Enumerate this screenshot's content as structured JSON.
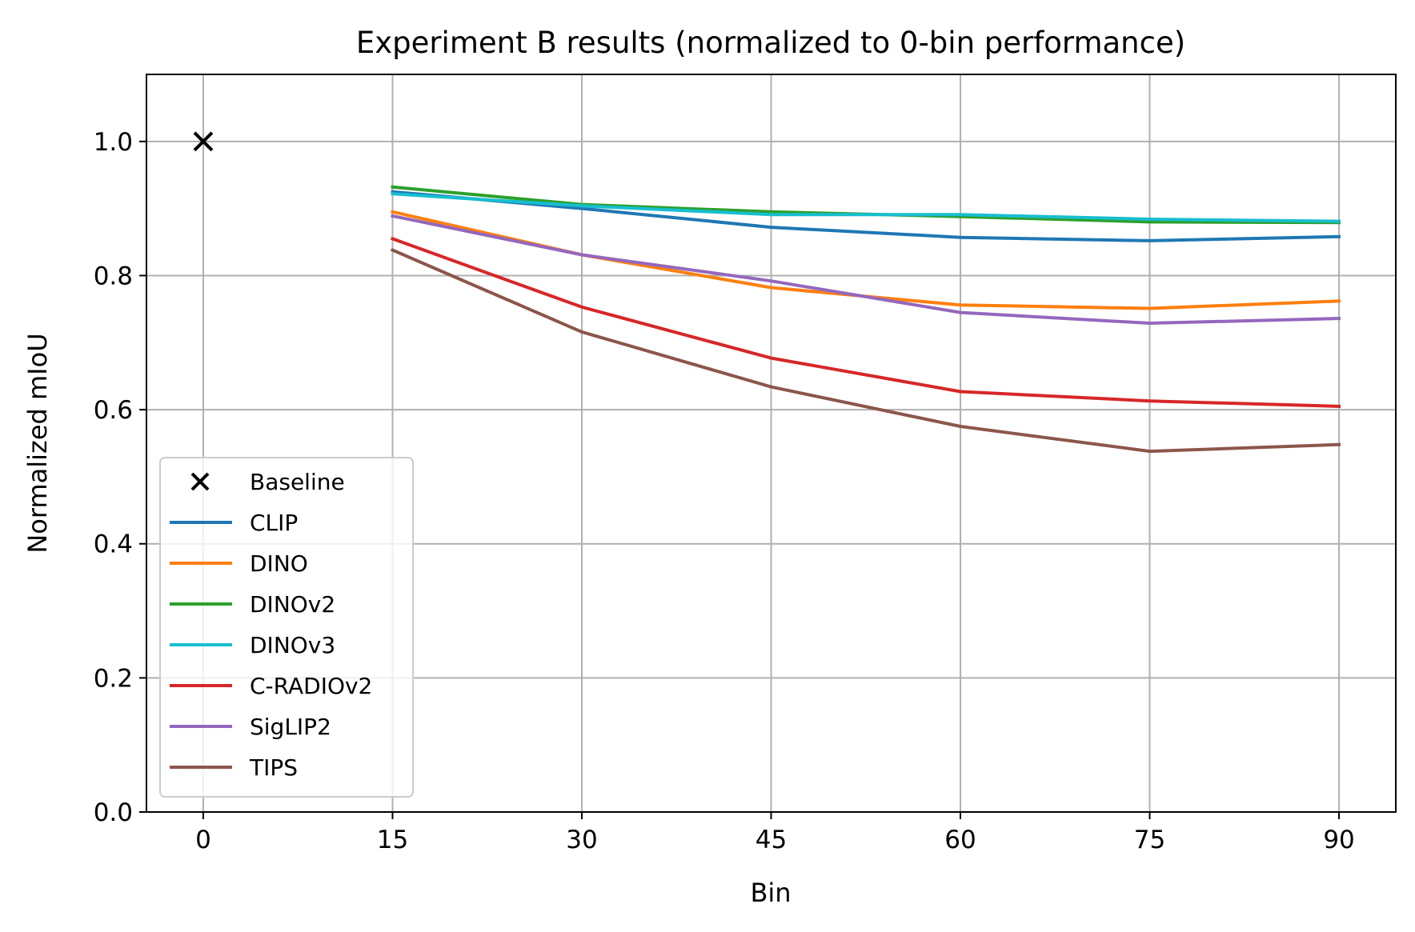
{
  "chart_data": {
    "type": "line",
    "title": "Experiment B results (normalized to 0-bin performance)",
    "xlabel": "Bin",
    "ylabel": "Normalized mIoU",
    "xlim": [
      -4.5,
      94.5
    ],
    "ylim": [
      0,
      1.1
    ],
    "xticks": [
      0,
      15,
      30,
      45,
      60,
      75,
      90
    ],
    "xtick_labels": [
      "0",
      "15",
      "30",
      "45",
      "60",
      "75",
      "90"
    ],
    "yticks": [
      0.0,
      0.2,
      0.4,
      0.6,
      0.8,
      1.0
    ],
    "ytick_labels": [
      "0.0",
      "0.2",
      "0.4",
      "0.6",
      "0.8",
      "1.0"
    ],
    "grid": true,
    "legend_position": "lower-left",
    "baseline": {
      "name": "Baseline",
      "x": 0,
      "y": 1.0,
      "marker": "x",
      "color": "#000000"
    },
    "x": [
      15,
      30,
      45,
      60,
      75,
      90
    ],
    "series": [
      {
        "name": "CLIP",
        "color": "#1f77b4",
        "values": [
          0.925,
          0.9,
          0.872,
          0.857,
          0.852,
          0.858
        ]
      },
      {
        "name": "DINO",
        "color": "#ff7f0e",
        "values": [
          0.895,
          0.831,
          0.782,
          0.756,
          0.751,
          0.762
        ]
      },
      {
        "name": "DINOv2",
        "color": "#2ca02c",
        "values": [
          0.932,
          0.906,
          0.895,
          0.888,
          0.88,
          0.879
        ]
      },
      {
        "name": "DINOv3",
        "color": "#17becf",
        "values": [
          0.922,
          0.904,
          0.891,
          0.891,
          0.884,
          0.881
        ]
      },
      {
        "name": "C-RADIOv2",
        "color": "#d62728",
        "values": [
          0.855,
          0.753,
          0.677,
          0.627,
          0.613,
          0.605
        ]
      },
      {
        "name": "SigLIP2",
        "color": "#9467bd",
        "values": [
          0.889,
          0.831,
          0.792,
          0.745,
          0.729,
          0.736
        ]
      },
      {
        "name": "TIPS",
        "color": "#8c564b",
        "values": [
          0.838,
          0.716,
          0.634,
          0.575,
          0.538,
          0.548
        ]
      }
    ]
  }
}
